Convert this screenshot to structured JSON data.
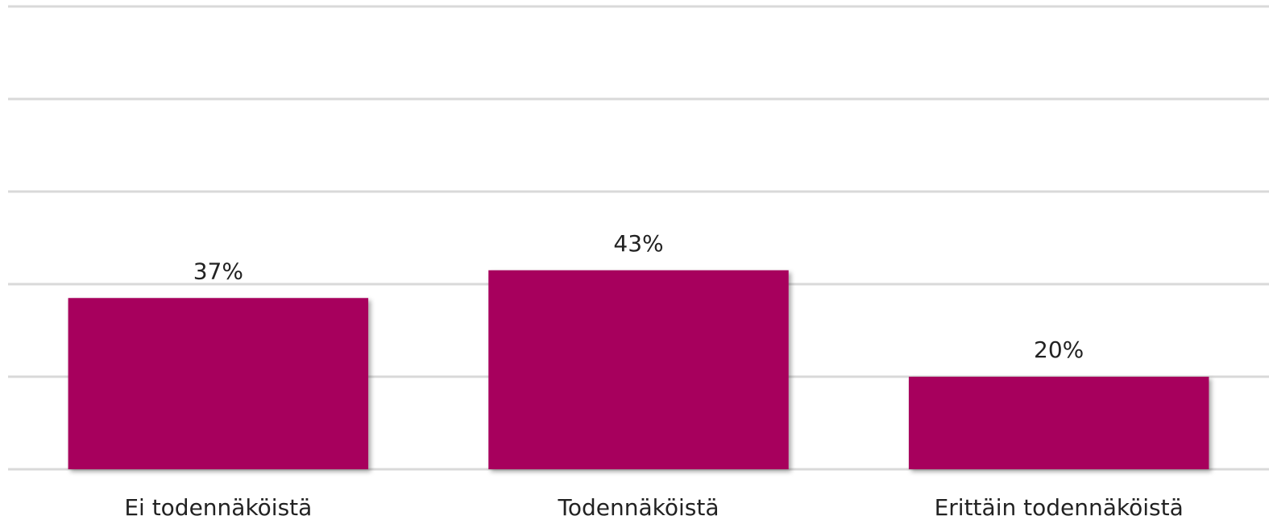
{
  "chart_data": {
    "type": "bar",
    "categories": [
      "Ei todennäköistä",
      "Todennäköistä",
      "Erittäin todennäköistä"
    ],
    "values": [
      37,
      43,
      20
    ],
    "value_labels": [
      "37%",
      "43%",
      "20%"
    ],
    "color": "#a7005d",
    "ylim": [
      0,
      100
    ],
    "yticks": [
      0,
      20,
      40,
      60,
      80,
      100
    ],
    "grid": true
  }
}
